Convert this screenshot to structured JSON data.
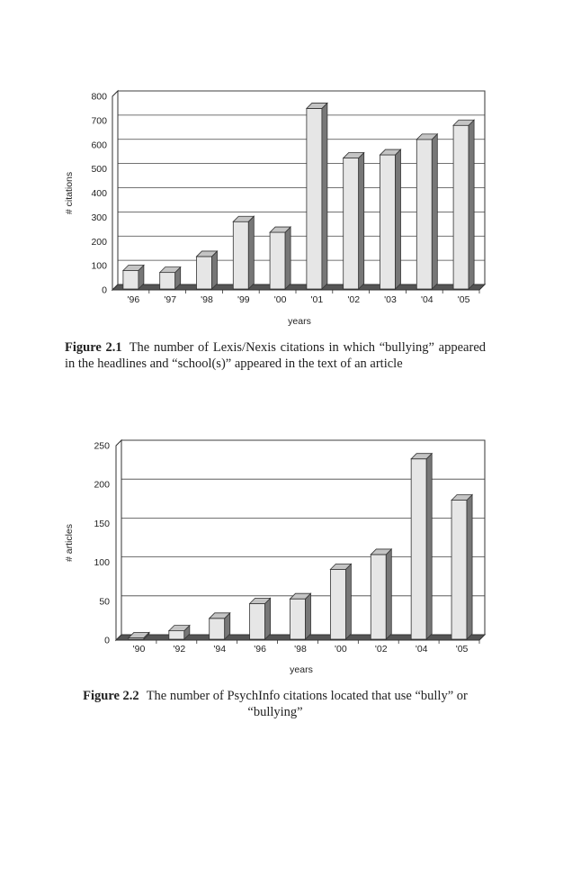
{
  "chart_data": [
    {
      "type": "bar",
      "categories": [
        "'96",
        "'97",
        "'98",
        "'99",
        "'00",
        "'01",
        "'02",
        "'03",
        "'04",
        "'05"
      ],
      "values": [
        80,
        72,
        138,
        282,
        238,
        750,
        545,
        558,
        622,
        680
      ],
      "xlabel": "years",
      "ylabel": "# citations",
      "ylim": [
        0,
        800
      ],
      "yticks": [
        0,
        100,
        200,
        300,
        400,
        500,
        600,
        700,
        800
      ],
      "grid": true,
      "bar_color": "#e6e6e6",
      "bar_side_color": "#777777",
      "bar_top_color": "#c4c4c4",
      "caption_number": "Figure 2.1",
      "caption_text": "The number of Lexis/Nexis citations in which “bullying” appeared in the headlines and “school(s)” appeared in the text of an article"
    },
    {
      "type": "bar",
      "categories": [
        "'90",
        "'92",
        "'94",
        "'96",
        "'98",
        "'00",
        "'02",
        "'04",
        "'05"
      ],
      "values": [
        3,
        12,
        28,
        47,
        53,
        91,
        110,
        233,
        180
      ],
      "xlabel": "years",
      "ylabel": "# articles",
      "ylim": [
        0,
        250
      ],
      "yticks": [
        0,
        50,
        100,
        150,
        200,
        250
      ],
      "grid": true,
      "bar_color": "#e6e6e6",
      "bar_side_color": "#777777",
      "bar_top_color": "#c4c4c4",
      "caption_number": "Figure 2.2",
      "caption_text": "The number of PsychInfo citations located that use “bully” or “bullying”"
    }
  ]
}
